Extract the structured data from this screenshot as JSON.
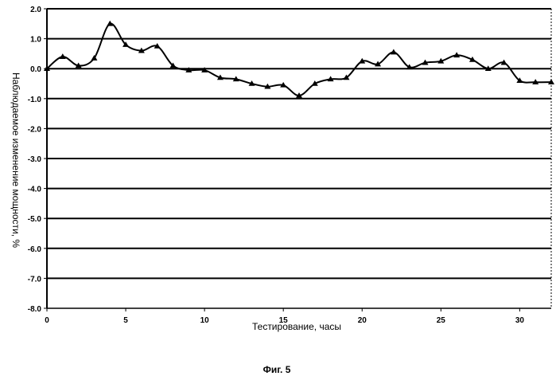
{
  "chart_data": {
    "type": "line",
    "title": "",
    "xlabel": "Тестирование, часы",
    "ylabel": "Наблюдаемое изменение мощности, %",
    "caption": "Фиг. 5",
    "xlim": [
      0,
      32
    ],
    "ylim": [
      -8,
      2
    ],
    "x_ticks": [
      0,
      5,
      10,
      15,
      20,
      25,
      30
    ],
    "x_tick_labels": [
      "0",
      "5",
      "10",
      "15",
      "20",
      "25",
      "30"
    ],
    "y_ticks": [
      2,
      1,
      0,
      -1,
      -2,
      -3,
      -4,
      -5,
      -6,
      -7,
      -8
    ],
    "y_tick_labels": [
      "2.0",
      "1.0",
      "0.0",
      "-1.0",
      "-2.0",
      "-3.0",
      "-4.0",
      "-5.0",
      "-6.0",
      "-7.0",
      "-8.0"
    ],
    "grid": true,
    "legend": "none",
    "series": [
      {
        "marker": "triangle",
        "color": "#000000",
        "x": [
          0,
          1,
          2,
          3,
          4,
          5,
          6,
          7,
          8,
          9,
          10,
          11,
          12,
          13,
          14,
          15,
          16,
          17,
          18,
          19,
          20,
          21,
          22,
          23,
          24,
          25,
          26,
          27,
          28,
          29,
          30,
          31,
          32
        ],
        "y": [
          0.0,
          0.4,
          0.1,
          0.35,
          1.5,
          0.8,
          0.6,
          0.75,
          0.1,
          -0.05,
          -0.05,
          -0.3,
          -0.35,
          -0.5,
          -0.6,
          -0.55,
          -0.9,
          -0.5,
          -0.35,
          -0.3,
          0.25,
          0.15,
          0.55,
          0.05,
          0.2,
          0.25,
          0.45,
          0.3,
          0.0,
          0.2,
          -0.4,
          -0.45,
          -0.45
        ]
      }
    ]
  }
}
